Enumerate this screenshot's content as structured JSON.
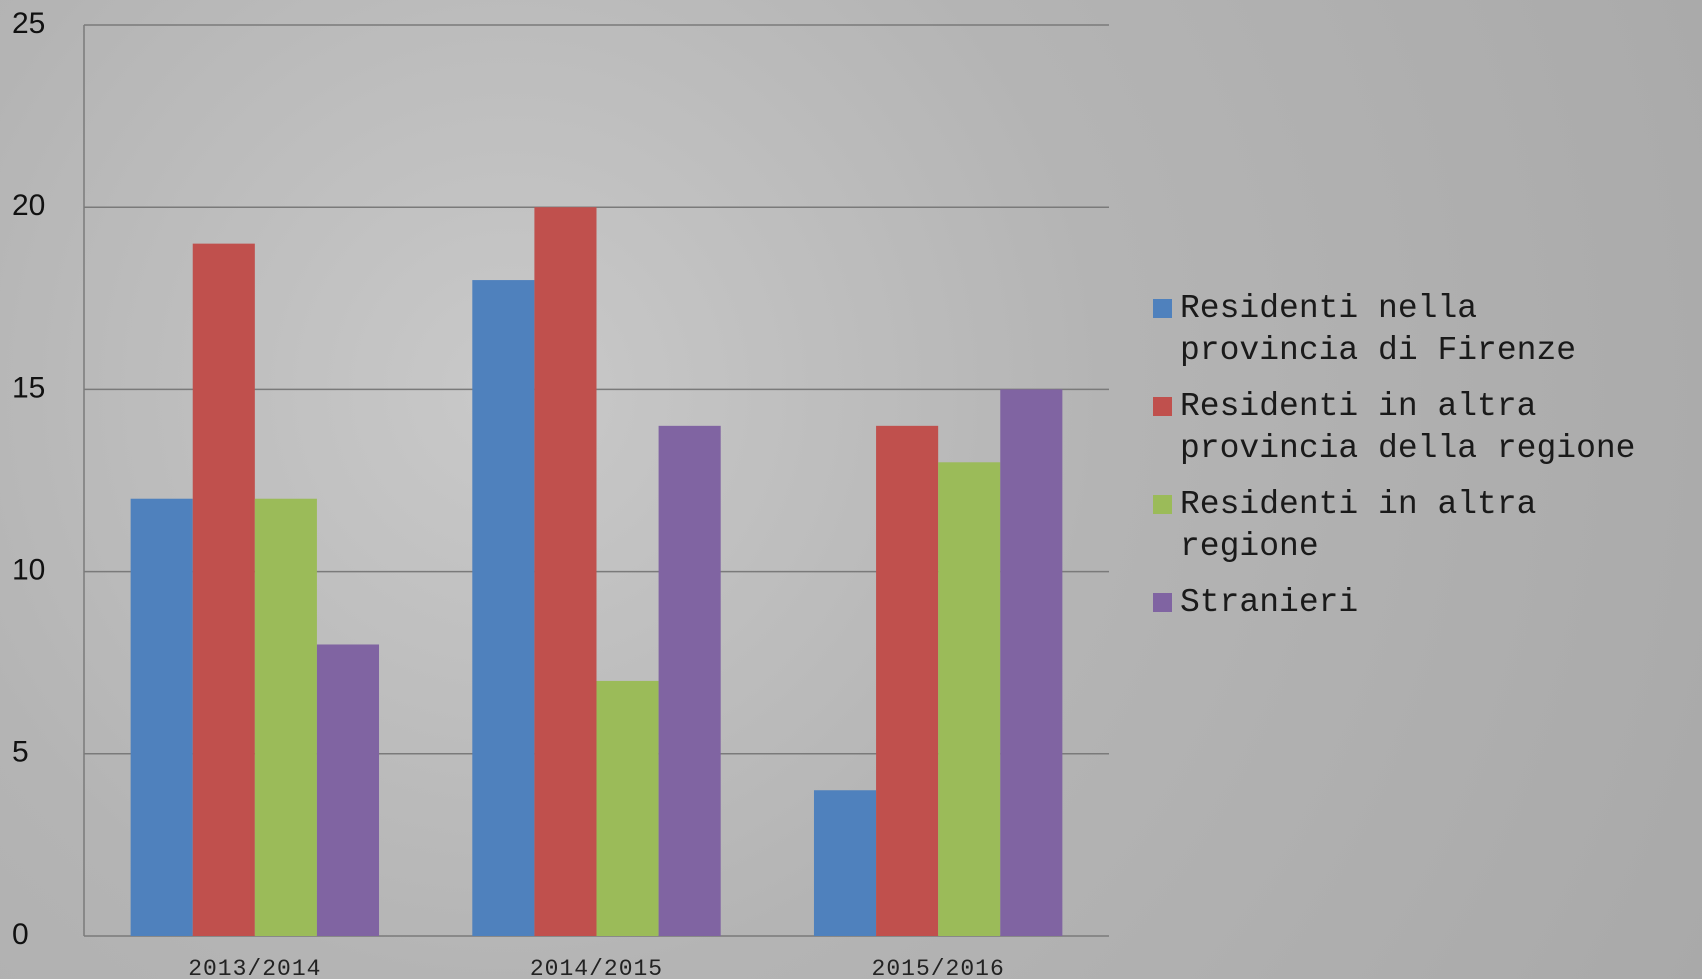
{
  "chart_data": {
    "type": "bar",
    "categories": [
      "2013/2014",
      "2014/2015",
      "2015/2016"
    ],
    "series": [
      {
        "name": "Residenti nella provincia di Firenze",
        "color": "#4f81bd",
        "values": [
          12,
          18,
          4
        ]
      },
      {
        "name": "Residenti in altra provincia della regione",
        "color": "#c0504d",
        "values": [
          19,
          20,
          14
        ]
      },
      {
        "name": "Residenti in altra regione",
        "color": "#9bbb59",
        "values": [
          12,
          7,
          13
        ]
      },
      {
        "name": "Stranieri",
        "color": "#8064a2",
        "values": [
          8,
          14,
          15
        ]
      }
    ],
    "ylim": [
      0,
      25
    ],
    "yticks": [
      0,
      5,
      10,
      15,
      20,
      25
    ],
    "grid": true,
    "legend": "right"
  }
}
